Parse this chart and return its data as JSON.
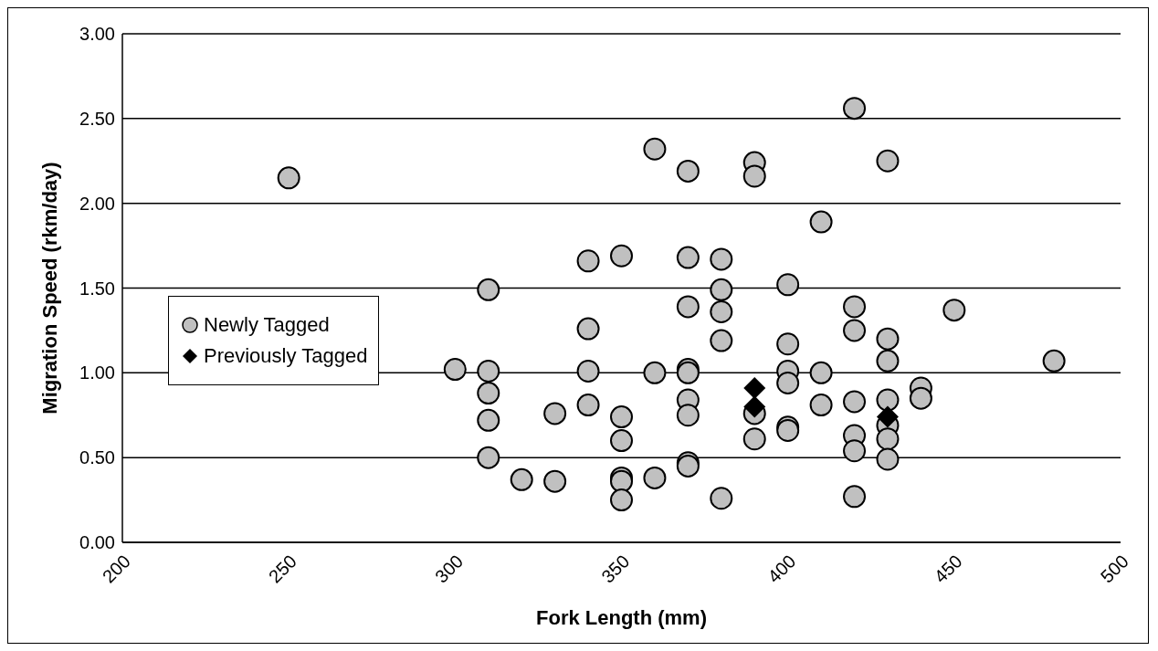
{
  "chart_data": {
    "type": "scatter",
    "xlabel": "Fork Length (mm)",
    "ylabel": "Migration Speed (rkm/day)",
    "xlim": [
      200,
      500
    ],
    "xticks": [
      200,
      250,
      300,
      350,
      400,
      450,
      500
    ],
    "ylim": [
      0,
      3
    ],
    "yticks": [
      {
        "value": 0,
        "label": "0.00"
      },
      {
        "value": 0.5,
        "label": "0.50"
      },
      {
        "value": 1,
        "label": "1.00"
      },
      {
        "value": 1.5,
        "label": "1.50"
      },
      {
        "value": 2,
        "label": "2.00"
      },
      {
        "value": 2.5,
        "label": "2.50"
      },
      {
        "value": 3,
        "label": "3.00"
      }
    ],
    "grid": "y",
    "legend": "left",
    "series": [
      {
        "name": "Newly Tagged",
        "color": "#c0c0c0",
        "marker": "circle",
        "x": [
          250,
          300,
          310,
          310,
          310,
          310,
          310,
          320,
          330,
          330,
          340,
          340,
          340,
          340,
          350,
          350,
          350,
          350,
          350,
          350,
          360,
          360,
          360,
          370,
          370,
          370,
          370,
          370,
          370,
          370,
          370,
          370,
          380,
          380,
          380,
          380,
          380,
          390,
          390,
          390,
          390,
          400,
          400,
          400,
          400,
          400,
          400,
          410,
          410,
          410,
          420,
          420,
          420,
          420,
          420,
          420,
          420,
          430,
          430,
          430,
          430,
          430,
          430,
          430,
          440,
          440,
          450,
          480
        ],
        "values": [
          2.15,
          1.02,
          1.49,
          1.01,
          0.88,
          0.72,
          0.5,
          0.37,
          0.36,
          0.76,
          1.66,
          1.26,
          1.01,
          0.81,
          1.69,
          0.74,
          0.6,
          0.38,
          0.36,
          0.25,
          2.32,
          1.0,
          0.38,
          2.19,
          1.68,
          1.39,
          1.02,
          1.0,
          0.84,
          0.75,
          0.47,
          0.45,
          1.67,
          1.49,
          1.36,
          1.19,
          0.26,
          2.24,
          2.16,
          0.76,
          0.61,
          1.52,
          1.17,
          1.01,
          0.94,
          0.68,
          0.66,
          1.89,
          1.0,
          0.81,
          2.56,
          1.39,
          1.25,
          0.83,
          0.63,
          0.54,
          0.27,
          2.25,
          1.2,
          1.07,
          0.84,
          0.69,
          0.61,
          0.49,
          0.91,
          0.85,
          1.37,
          1.07
        ]
      },
      {
        "name": "Previously Tagged",
        "color": "#000000",
        "marker": "diamond",
        "x": [
          390,
          390,
          430
        ],
        "values": [
          0.91,
          0.8,
          0.74
        ]
      }
    ]
  }
}
